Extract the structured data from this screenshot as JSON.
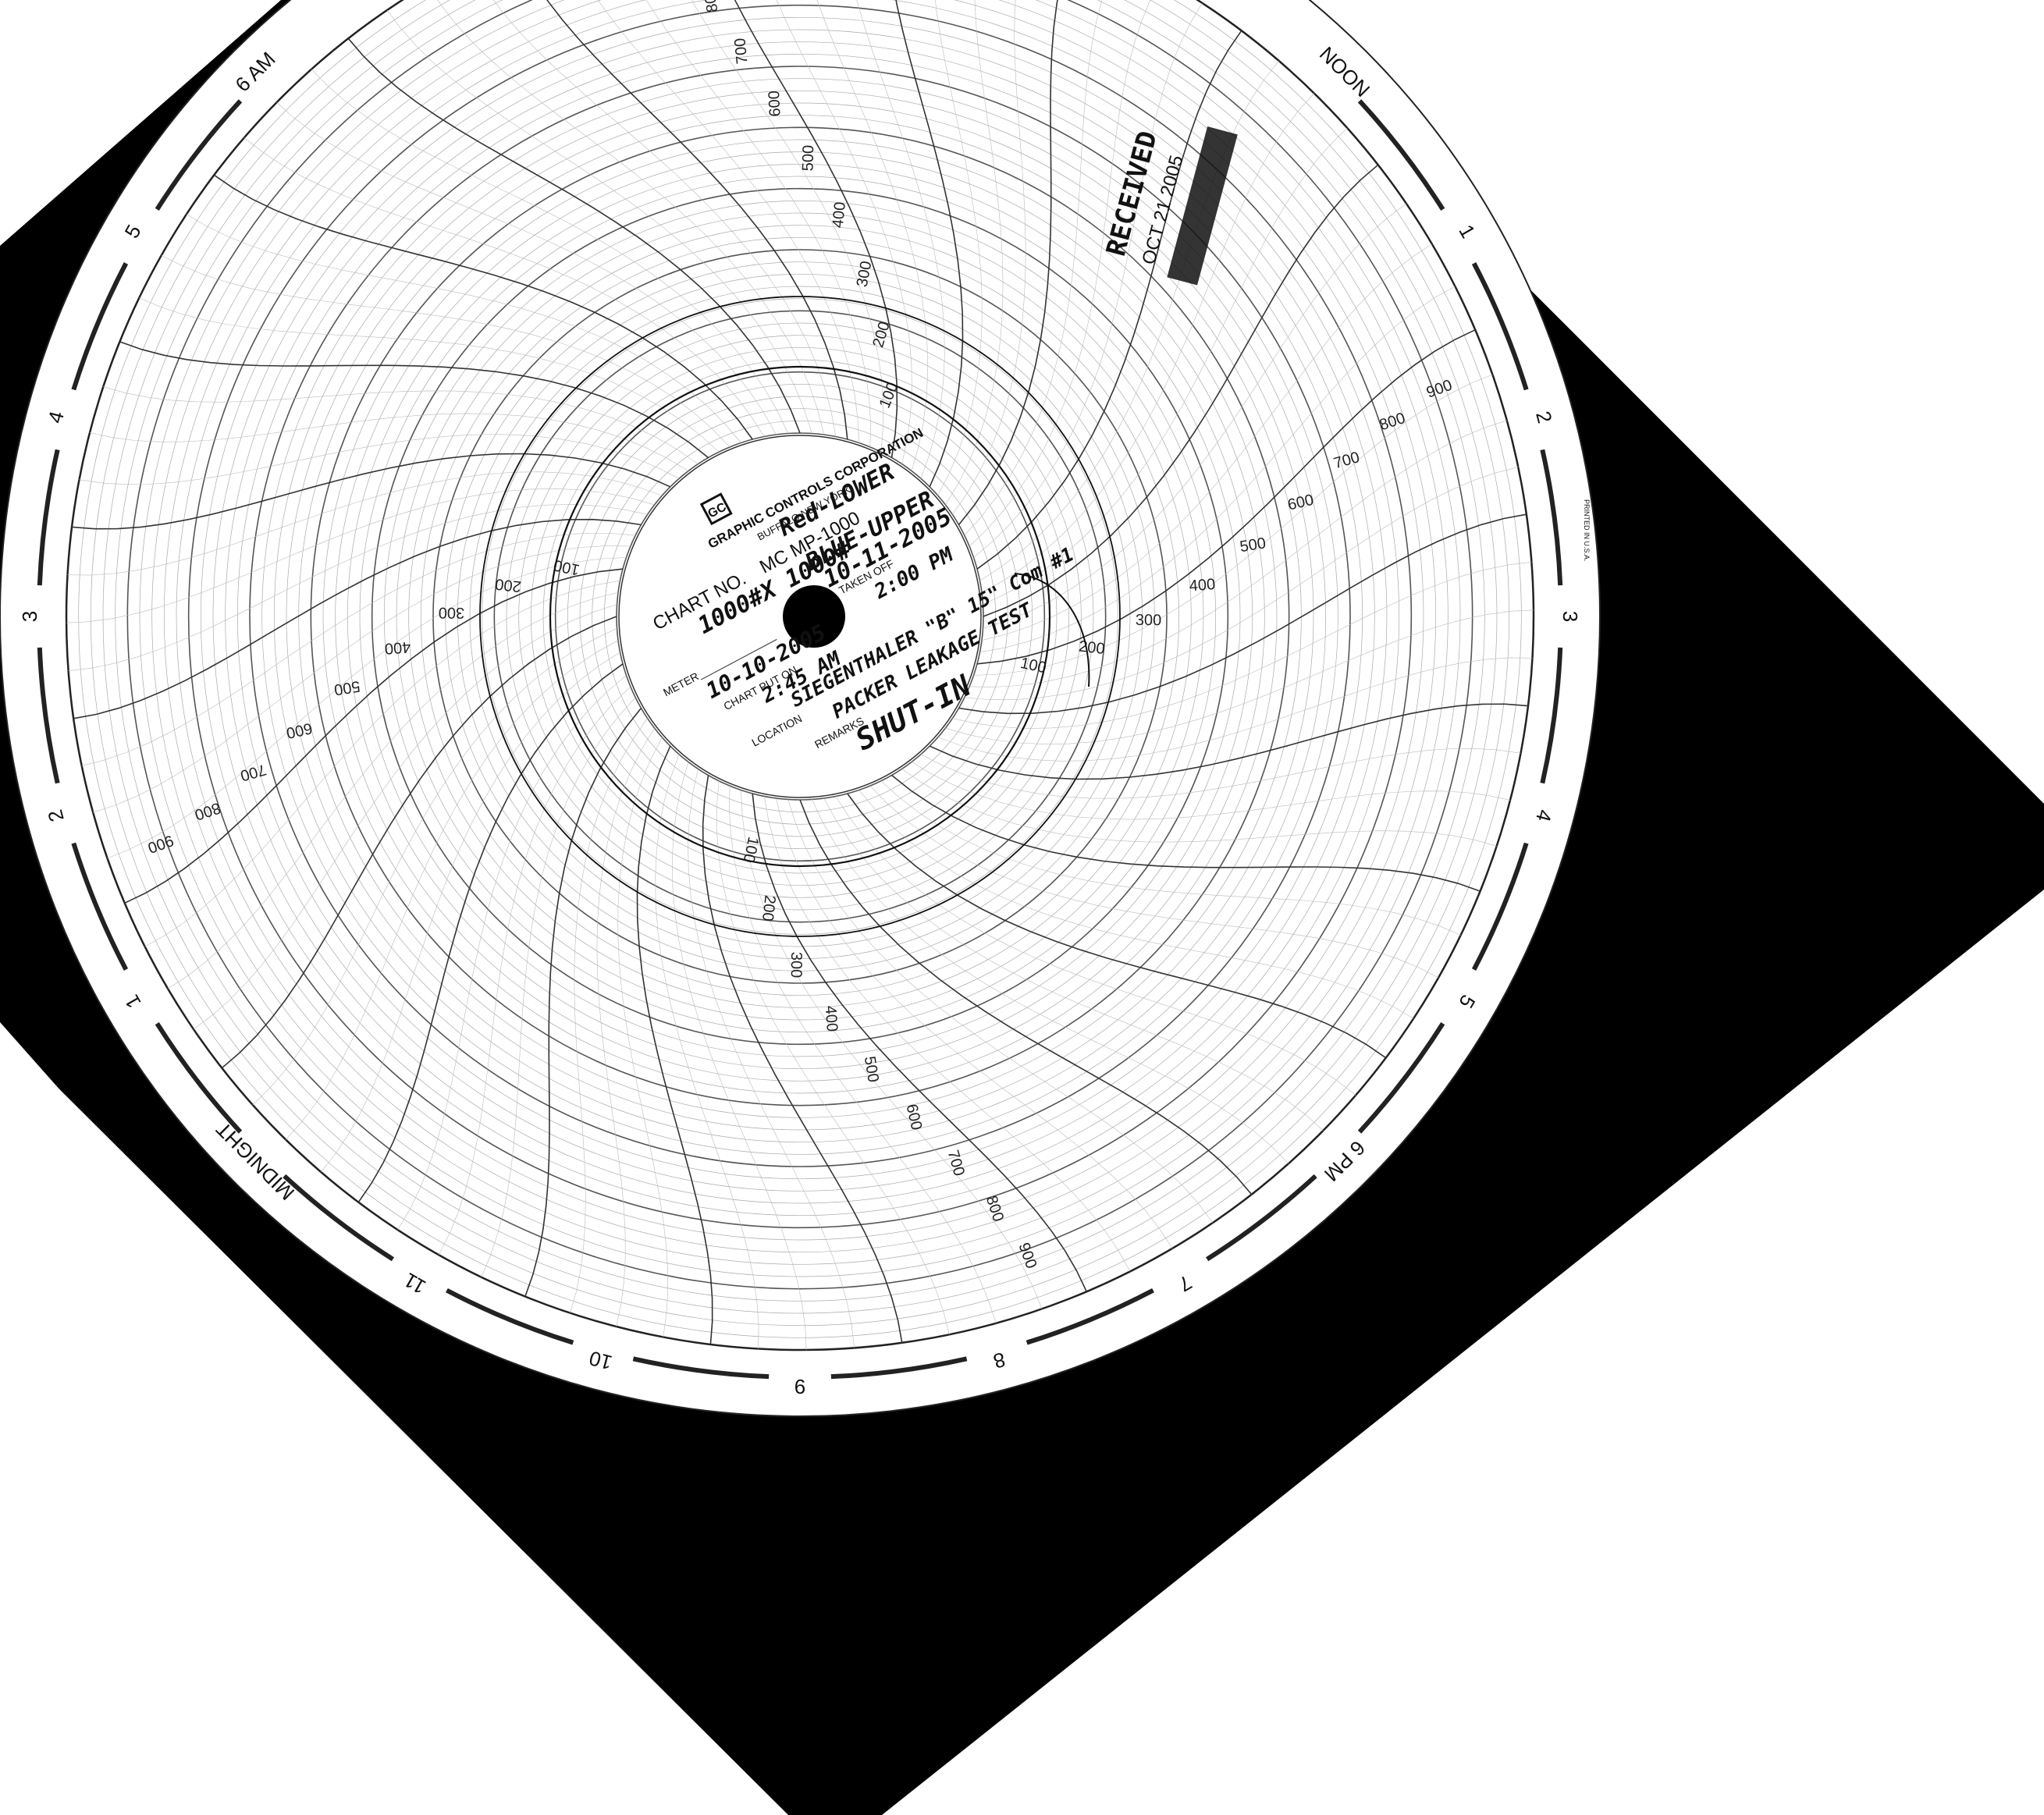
{
  "chart": {
    "maker": "GRAPHIC CONTROLS CORPORATION",
    "city": "BUFFALO NEW YORK",
    "chart_no_label": "CHART NO.",
    "chart_no": "MC MP-1000",
    "printed_note": "PRINTED IN U.S.A.",
    "logo_letters": "GC",
    "field_labels": {
      "meter": "METER",
      "chart_put_on": "CHART PUT ON",
      "taken_off": "TAKEN OFF",
      "location": "LOCATION",
      "remarks": "REMARKS"
    },
    "hour_labels": [
      "NOON",
      "1",
      "2",
      "3",
      "4",
      "5",
      "6 PM",
      "7",
      "8",
      "9",
      "10",
      "11",
      "MIDNIGHT",
      "1",
      "2",
      "3",
      "4",
      "5",
      "6 AM"
    ],
    "scale_values": [
      "100",
      "200",
      "300",
      "400",
      "500",
      "600",
      "700",
      "800",
      "900"
    ]
  },
  "handwriting": {
    "range": "1000#X 1000#",
    "red": "Red-LOWER",
    "blue": "BLUE-UPPER",
    "taken_off_date": "10-11-2005",
    "taken_off_time": "2:00 PM",
    "put_on_date": "10-10-2005",
    "put_on_time": "2:45 AM",
    "location": "SIEGENTHALER \"B\" 15\" Com #1",
    "remarks_1": "PACKER LEAKAGE TEST",
    "remarks_2": "SHUT-IN"
  },
  "stamp": {
    "received": "RECEIVED",
    "date": "OCT 21 2005"
  }
}
